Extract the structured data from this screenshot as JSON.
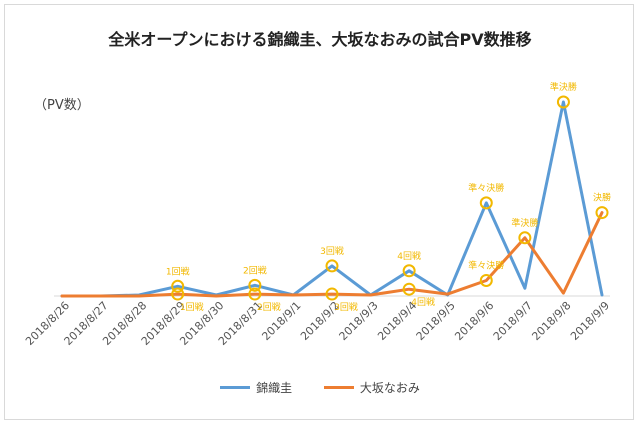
{
  "chart_data": {
    "type": "line",
    "title": "全米オープンにおける錦織圭、大坂なおみの試合PV数推移",
    "unit_label": "（PV数）",
    "categories": [
      "2018/8/26",
      "2018/8/27",
      "2018/8/28",
      "2018/8/29",
      "2018/8/30",
      "2018/8/31",
      "2018/9/1",
      "2018/9/2",
      "2018/9/3",
      "2018/9/4",
      "2018/9/5",
      "2018/9/6",
      "2018/9/7",
      "2018/9/8",
      "2018/9/9"
    ],
    "ylim": [
      0,
      100
    ],
    "grid": false,
    "legend_position": "bottom",
    "series": [
      {
        "name": "錦織圭",
        "color": "#5b9bd5",
        "values": [
          0,
          0,
          0.5,
          5,
          0.5,
          5.5,
          0.5,
          15.5,
          0.5,
          13,
          0.5,
          48,
          4,
          100,
          0.5
        ]
      },
      {
        "name": "大坂なおみ",
        "color": "#ed7d31",
        "values": [
          0,
          0,
          0,
          1,
          0,
          1,
          0.5,
          1,
          0.5,
          3.5,
          1,
          8,
          30,
          1.5,
          43
        ]
      }
    ],
    "annotations": [
      {
        "series": 0,
        "index": 3,
        "text": "1回戦",
        "pos": "above"
      },
      {
        "series": 0,
        "index": 5,
        "text": "2回戦",
        "pos": "above"
      },
      {
        "series": 0,
        "index": 7,
        "text": "3回戦",
        "pos": "above"
      },
      {
        "series": 0,
        "index": 9,
        "text": "4回戦",
        "pos": "above"
      },
      {
        "series": 0,
        "index": 11,
        "text": "準々決勝",
        "pos": "above"
      },
      {
        "series": 0,
        "index": 13,
        "text": "準決勝",
        "pos": "above"
      },
      {
        "series": 1,
        "index": 3,
        "text": "1回戦",
        "pos": "below"
      },
      {
        "series": 1,
        "index": 5,
        "text": "2回戦",
        "pos": "below"
      },
      {
        "series": 1,
        "index": 7,
        "text": "3回戦",
        "pos": "below"
      },
      {
        "series": 1,
        "index": 9,
        "text": "4回戦",
        "pos": "below"
      },
      {
        "series": 1,
        "index": 11,
        "text": "準々決勝",
        "pos": "above"
      },
      {
        "series": 1,
        "index": 12,
        "text": "準決勝",
        "pos": "above"
      },
      {
        "series": 1,
        "index": 14,
        "text": "決勝",
        "pos": "above"
      }
    ],
    "annotation_color": "#f2b800"
  }
}
